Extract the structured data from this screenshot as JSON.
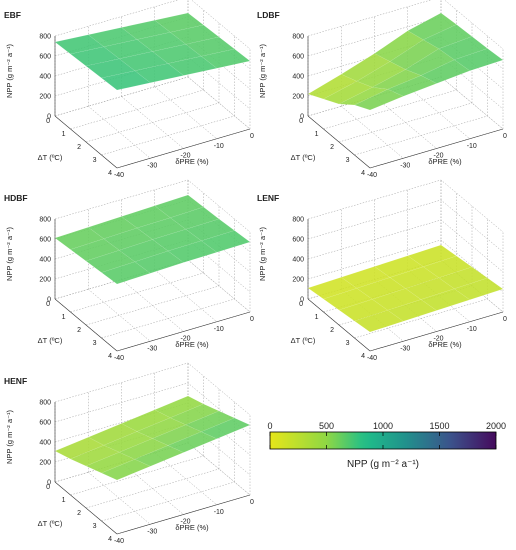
{
  "colors": {
    "low": "#e6e619",
    "mid": "#1fbe8a",
    "high": "#450a5c",
    "grid": "#a0a0a0",
    "axis": "#333333"
  },
  "chart_data": [
    {
      "type": "surface3d",
      "title": "EBF",
      "xlabel": "ΔT (ºC)",
      "ylabel": "δPRE (%)",
      "zlabel": "NPP (g m⁻² a⁻¹)",
      "x_ticks": [
        "0",
        "1",
        "2",
        "3",
        "4"
      ],
      "y_ticks": [
        "0",
        "-10",
        "-20",
        "-30",
        "-40"
      ],
      "z_ticks": [
        "0",
        "200",
        "400",
        "600",
        "800"
      ],
      "x": [
        0,
        1,
        2,
        3,
        4
      ],
      "y": [
        0,
        -10,
        -20,
        -30,
        -40
      ],
      "zlim": [
        0,
        800
      ],
      "z": [
        [
          640,
          650,
          660,
          670,
          680
        ],
        [
          665,
          675,
          685,
          695,
          705
        ],
        [
          690,
          700,
          710,
          720,
          730
        ],
        [
          715,
          725,
          735,
          745,
          755
        ],
        [
          740,
          750,
          760,
          770,
          780
        ]
      ]
    },
    {
      "type": "surface3d",
      "title": "LDBF",
      "xlabel": "ΔT (ºC)",
      "ylabel": "δPRE (%)",
      "zlabel": "NPP (g m⁻² a⁻¹)",
      "x_ticks": [
        "0",
        "1",
        "2",
        "3",
        "4"
      ],
      "y_ticks": [
        "0",
        "-10",
        "-20",
        "-30",
        "-40"
      ],
      "z_ticks": [
        "0",
        "200",
        "400",
        "600",
        "800"
      ],
      "x": [
        0,
        1,
        2,
        3,
        4
      ],
      "y": [
        0,
        -10,
        -20,
        -30,
        -40
      ],
      "zlim": [
        0,
        800
      ],
      "z": [
        [
          640,
          655,
          665,
          675,
          690
        ],
        [
          560,
          600,
          640,
          660,
          680
        ],
        [
          430,
          480,
          530,
          600,
          650
        ],
        [
          320,
          380,
          450,
          560,
          620
        ],
        [
          220,
          300,
          380,
          500,
          580
        ]
      ]
    },
    {
      "type": "surface3d",
      "title": "HDBF",
      "xlabel": "ΔT (ºC)",
      "ylabel": "δPRE (%)",
      "zlabel": "NPP (g m⁻² a⁻¹)",
      "x_ticks": [
        "0",
        "1",
        "2",
        "3",
        "4"
      ],
      "y_ticks": [
        "0",
        "-10",
        "-20",
        "-30",
        "-40"
      ],
      "z_ticks": [
        "0",
        "200",
        "400",
        "600",
        "800"
      ],
      "x": [
        0,
        1,
        2,
        3,
        4
      ],
      "y": [
        0,
        -10,
        -20,
        -30,
        -40
      ],
      "zlim": [
        0,
        800
      ],
      "z": [
        [
          650,
          660,
          670,
          685,
          700
        ],
        [
          640,
          650,
          665,
          680,
          695
        ],
        [
          630,
          645,
          660,
          675,
          690
        ],
        [
          620,
          635,
          650,
          665,
          680
        ],
        [
          610,
          625,
          640,
          655,
          670
        ]
      ]
    },
    {
      "type": "surface3d",
      "title": "LENF",
      "xlabel": "ΔT (ºC)",
      "ylabel": "δPRE (%)",
      "zlabel": "NPP (g m⁻² a⁻¹)",
      "x_ticks": [
        "0",
        "1",
        "2",
        "3",
        "4"
      ],
      "y_ticks": [
        "0",
        "-10",
        "-20",
        "-30",
        "-40"
      ],
      "z_ticks": [
        "0",
        "200",
        "400",
        "600",
        "800"
      ],
      "x": [
        0,
        1,
        2,
        3,
        4
      ],
      "y": [
        0,
        -10,
        -20,
        -30,
        -40
      ],
      "zlim": [
        0,
        800
      ],
      "z": [
        [
          150,
          170,
          190,
          210,
          230
        ],
        [
          140,
          160,
          180,
          200,
          220
        ],
        [
          130,
          150,
          170,
          190,
          210
        ],
        [
          120,
          140,
          160,
          180,
          200
        ],
        [
          110,
          130,
          150,
          170,
          190
        ]
      ]
    },
    {
      "type": "surface3d",
      "title": "HENF",
      "xlabel": "ΔT (ºC)",
      "ylabel": "δPRE (%)",
      "zlabel": "NPP (g m⁻² a⁻¹)",
      "x_ticks": [
        "0",
        "1",
        "2",
        "3",
        "4"
      ],
      "y_ticks": [
        "0",
        "-10",
        "-20",
        "-30",
        "-40"
      ],
      "z_ticks": [
        "0",
        "200",
        "400",
        "600",
        "800"
      ],
      "x": [
        0,
        1,
        2,
        3,
        4
      ],
      "y": [
        0,
        -10,
        -20,
        -30,
        -40
      ],
      "zlim": [
        0,
        800
      ],
      "z": [
        [
          470,
          520,
          580,
          640,
          700
        ],
        [
          430,
          480,
          540,
          600,
          660
        ],
        [
          390,
          440,
          500,
          560,
          620
        ],
        [
          350,
          400,
          460,
          520,
          580
        ],
        [
          310,
          360,
          420,
          480,
          540
        ]
      ]
    }
  ],
  "colorbar": {
    "range": [
      0,
      2000
    ],
    "ticks": [
      "0",
      "500",
      "1000",
      "1500",
      "2000"
    ],
    "tick_values": [
      0,
      500,
      1000,
      1500,
      2000
    ],
    "label": "NPP (g m⁻² a⁻¹)"
  }
}
